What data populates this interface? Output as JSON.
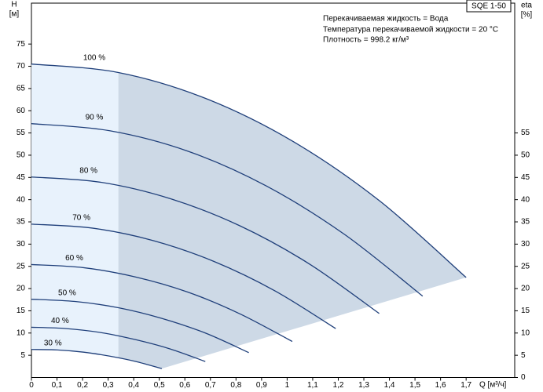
{
  "chart_data": {
    "type": "line",
    "tag": "SQE 1-50",
    "info": [
      "Перекачиваемая жидкость = Вода",
      "Температура перекачиваемой жидкости = 20 °C",
      "Плотность = 998.2 кг/м³"
    ],
    "y_label": "H",
    "y_unit": "[м]",
    "y2_label": "eta",
    "y2_unit": "[%]",
    "x_label": "Q [м³/ч]",
    "xlim": [
      0,
      1.89
    ],
    "ylim": [
      0,
      84.2
    ],
    "y2lim": [
      0,
      84.2
    ],
    "xticks": [
      0,
      {
        "value": 0.1,
        "label": "0,1"
      },
      {
        "value": 0.2,
        "label": "0,2"
      },
      {
        "value": 0.3,
        "label": "0,3"
      },
      {
        "value": 0.4,
        "label": "0,4"
      },
      {
        "value": 0.5,
        "label": "0,5"
      },
      {
        "value": 0.6,
        "label": "0,6"
      },
      {
        "value": 0.7,
        "label": "0,7"
      },
      {
        "value": 0.8,
        "label": "0,8"
      },
      {
        "value": 0.9,
        "label": "0,9"
      },
      1,
      {
        "value": 1.1,
        "label": "1,1"
      },
      {
        "value": 1.2,
        "label": "1,2"
      },
      {
        "value": 1.3,
        "label": "1,3"
      },
      {
        "value": 1.4,
        "label": "1,4"
      },
      {
        "value": 1.5,
        "label": "1,5"
      },
      {
        "value": 1.6,
        "label": "1,6"
      },
      {
        "value": 1.7,
        "label": "1,7"
      }
    ],
    "yticks": [
      5,
      10,
      15,
      20,
      25,
      30,
      35,
      40,
      45,
      50,
      55,
      60,
      65,
      70,
      75
    ],
    "y2ticks": [
      0,
      5,
      10,
      15,
      20,
      25,
      30,
      35,
      40,
      45,
      50,
      55
    ],
    "color": "#1f3f7a",
    "fill_color": "#cdd9e6",
    "low_fill_color": "#e8f2fc",
    "series": [
      {
        "name": "100 %",
        "x": [
          0,
          0.34,
          0.68,
          1.02,
          1.36,
          1.7
        ],
        "values": [
          70.5,
          68.6,
          62.8,
          53.2,
          39.8,
          22.5
        ]
      },
      {
        "name": "90 %",
        "x": [
          0,
          0.306,
          0.612,
          0.918,
          1.224,
          1.53
        ],
        "values": [
          57.1,
          55.5,
          50.9,
          43.1,
          32.2,
          18.3
        ]
      },
      {
        "name": "80 %",
        "x": [
          0,
          0.272,
          0.544,
          0.816,
          1.088,
          1.36
        ],
        "values": [
          45.1,
          43.9,
          40.2,
          34.1,
          25.5,
          14.4
        ]
      },
      {
        "name": "70 %",
        "x": [
          0,
          0.238,
          0.476,
          0.714,
          0.952,
          1.19
        ],
        "values": [
          34.5,
          33.6,
          30.8,
          26.1,
          19.5,
          11.0
        ]
      },
      {
        "name": "60 %",
        "x": [
          0,
          0.204,
          0.408,
          0.612,
          0.816,
          1.02
        ],
        "values": [
          25.4,
          24.7,
          22.6,
          19.2,
          14.3,
          8.1
        ]
      },
      {
        "name": "50 %",
        "x": [
          0,
          0.17,
          0.34,
          0.51,
          0.68,
          0.85
        ],
        "values": [
          17.6,
          17.1,
          15.7,
          13.3,
          10.0,
          5.6
        ]
      },
      {
        "name": "40 %",
        "x": [
          0,
          0.136,
          0.272,
          0.408,
          0.544,
          0.68
        ],
        "values": [
          11.3,
          11.0,
          10.1,
          8.5,
          6.4,
          3.6
        ]
      },
      {
        "name": "30 %",
        "x": [
          0,
          0.102,
          0.204,
          0.306,
          0.408,
          0.51
        ],
        "values": [
          6.3,
          6.2,
          5.7,
          4.8,
          3.6,
          2.0
        ]
      }
    ]
  }
}
